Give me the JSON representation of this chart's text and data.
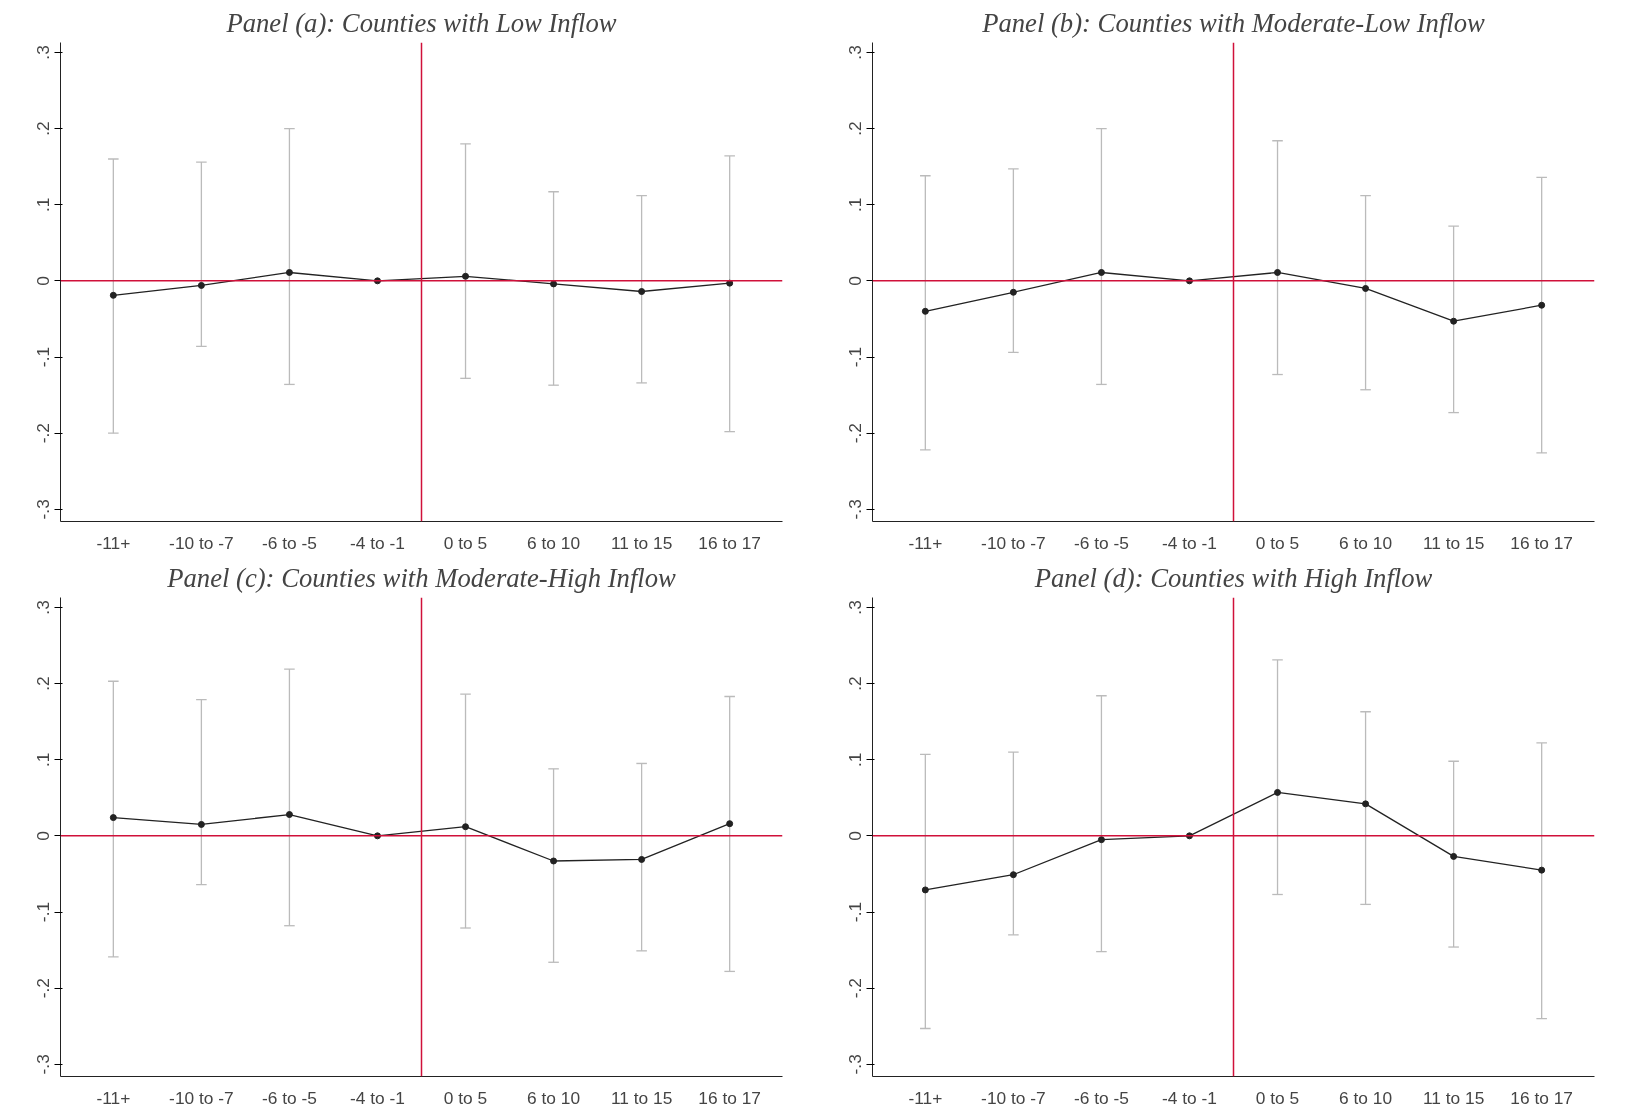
{
  "chart_data": [
    {
      "type": "line",
      "title": "Panel (a): Counties with Low Inflow",
      "categories": [
        "-11+",
        "-10 to -7",
        "-6 to -5",
        "-4 to -1",
        "0 to 5",
        "6 to 10",
        "11 to 15",
        "16 to 17"
      ],
      "series": [
        {
          "color": "#222222",
          "values": [
            -0.019,
            -0.006,
            0.011,
            0.0,
            0.006,
            -0.004,
            -0.014,
            -0.003
          ],
          "errors": [
            [
              -0.2,
              0.16
            ],
            [
              -0.086,
              0.156
            ],
            [
              -0.136,
              0.2
            ],
            null,
            [
              -0.128,
              0.18
            ],
            [
              -0.137,
              0.117
            ],
            [
              -0.134,
              0.112
            ],
            [
              -0.198,
              0.164
            ]
          ]
        }
      ],
      "ylim": [
        -0.316,
        0.313
      ],
      "yticks": [
        {
          "value": -0.3,
          "label": "-.3"
        },
        {
          "value": -0.2,
          "label": "-.2"
        },
        {
          "value": -0.1,
          "label": "-.1"
        },
        0,
        {
          "value": 0.1,
          "label": ".1"
        },
        {
          "value": 0.2,
          "label": ".2"
        },
        {
          "value": 0.3,
          "label": ".3"
        }
      ],
      "ref_lines": [
        {
          "axis": "y",
          "value": 0,
          "color": "#d0103a"
        }
      ],
      "marker": "circle",
      "grid": false
    },
    {
      "type": "line",
      "title": "Panel (b): Counties with Moderate-Low Inflow",
      "categories": [
        "-11+",
        "-10 to -7",
        "-6 to -5",
        "-4 to -1",
        "0 to 5",
        "6 to 10",
        "11 to 15",
        "16 to 17"
      ],
      "series": [
        {
          "color": "#222222",
          "values": [
            -0.04,
            -0.015,
            0.011,
            0.0,
            0.011,
            -0.01,
            -0.053,
            -0.032
          ],
          "errors": [
            [
              -0.222,
              0.138
            ],
            [
              -0.094,
              0.147
            ],
            [
              -0.136,
              0.2
            ],
            null,
            [
              -0.123,
              0.184
            ],
            [
              -0.143,
              0.112
            ],
            [
              -0.173,
              0.072
            ],
            [
              -0.226,
              0.136
            ]
          ]
        }
      ],
      "ylim": [
        -0.316,
        0.313
      ],
      "yticks": [
        {
          "value": -0.3,
          "label": "-.3"
        },
        {
          "value": -0.2,
          "label": "-.2"
        },
        {
          "value": -0.1,
          "label": "-.1"
        },
        0,
        {
          "value": 0.1,
          "label": ".1"
        },
        {
          "value": 0.2,
          "label": ".2"
        },
        {
          "value": 0.3,
          "label": ".3"
        }
      ],
      "ref_lines": [
        {
          "axis": "y",
          "value": 0,
          "color": "#d0103a"
        }
      ],
      "marker": "circle",
      "grid": false
    },
    {
      "type": "line",
      "title": "Panel (c): Counties with Moderate-High Inflow",
      "categories": [
        "-11+",
        "-10 to -7",
        "-6 to -5",
        "-4 to -1",
        "0 to 5",
        "6 to 10",
        "11 to 15",
        "16 to 17"
      ],
      "series": [
        {
          "color": "#222222",
          "values": [
            0.024,
            0.015,
            0.028,
            0.0,
            0.012,
            -0.033,
            -0.031,
            0.016
          ],
          "errors": [
            [
              -0.159,
              0.203
            ],
            [
              -0.064,
              0.179
            ],
            [
              -0.118,
              0.219
            ],
            null,
            [
              -0.121,
              0.186
            ],
            [
              -0.166,
              0.088
            ],
            [
              -0.151,
              0.095
            ],
            [
              -0.178,
              0.183
            ]
          ]
        }
      ],
      "ylim": [
        -0.316,
        0.313
      ],
      "yticks": [
        {
          "value": -0.3,
          "label": "-.3"
        },
        {
          "value": -0.2,
          "label": "-.2"
        },
        {
          "value": -0.1,
          "label": "-.1"
        },
        0,
        {
          "value": 0.1,
          "label": ".1"
        },
        {
          "value": 0.2,
          "label": ".2"
        },
        {
          "value": 0.3,
          "label": ".3"
        }
      ],
      "ref_lines": [
        {
          "axis": "y",
          "value": 0,
          "color": "#d0103a"
        }
      ],
      "marker": "circle",
      "grid": false
    },
    {
      "type": "line",
      "title": "Panel (d): Counties with High Inflow",
      "categories": [
        "-11+",
        "-10 to -7",
        "-6 to -5",
        "-4 to -1",
        "0 to 5",
        "6 to 10",
        "11 to 15",
        "16 to 17"
      ],
      "series": [
        {
          "color": "#222222",
          "values": [
            -0.071,
            -0.051,
            -0.005,
            0.0,
            0.057,
            0.042,
            -0.027,
            -0.045
          ],
          "errors": [
            [
              -0.253,
              0.107
            ],
            [
              -0.13,
              0.11
            ],
            [
              -0.152,
              0.184
            ],
            null,
            [
              -0.077,
              0.231
            ],
            [
              -0.09,
              0.163
            ],
            [
              -0.146,
              0.098
            ],
            [
              -0.24,
              0.122
            ]
          ]
        }
      ],
      "ylim": [
        -0.316,
        0.313
      ],
      "yticks": [
        {
          "value": -0.3,
          "label": "-.3"
        },
        {
          "value": -0.2,
          "label": "-.2"
        },
        {
          "value": -0.1,
          "label": "-.1"
        },
        0,
        {
          "value": 0.1,
          "label": ".1"
        },
        {
          "value": 0.2,
          "label": ".2"
        },
        {
          "value": 0.3,
          "label": ".3"
        }
      ],
      "ref_lines": [
        {
          "axis": "y",
          "value": 0,
          "color": "#d0103a"
        }
      ],
      "marker": "circle",
      "grid": false
    }
  ]
}
